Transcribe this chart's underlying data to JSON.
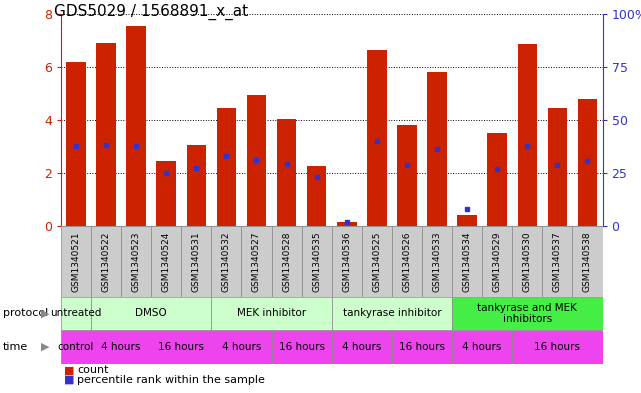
{
  "title": "GDS5029 / 1568891_x_at",
  "samples": [
    "GSM1340521",
    "GSM1340522",
    "GSM1340523",
    "GSM1340524",
    "GSM1340531",
    "GSM1340532",
    "GSM1340527",
    "GSM1340528",
    "GSM1340535",
    "GSM1340536",
    "GSM1340525",
    "GSM1340526",
    "GSM1340533",
    "GSM1340534",
    "GSM1340529",
    "GSM1340530",
    "GSM1340537",
    "GSM1340538"
  ],
  "bar_heights": [
    6.2,
    6.9,
    7.55,
    2.45,
    3.05,
    4.45,
    4.95,
    4.05,
    2.25,
    0.15,
    6.65,
    3.8,
    5.8,
    0.4,
    3.5,
    6.85,
    4.45,
    4.8
  ],
  "blue_markers": [
    3.0,
    3.05,
    3.0,
    2.0,
    2.2,
    2.65,
    2.5,
    2.35,
    1.85,
    0.15,
    3.2,
    2.3,
    2.9,
    0.65,
    2.15,
    3.0,
    2.3,
    2.45
  ],
  "ylim": [
    0,
    8
  ],
  "yticks": [
    0,
    2,
    4,
    6,
    8
  ],
  "y_right_ticks": [
    0,
    25,
    50,
    75,
    100
  ],
  "bar_color": "#cc2200",
  "blue_color": "#3333cc",
  "grid_color": "#000000",
  "sample_bg_color": "#cccccc",
  "sample_border_color": "#888888",
  "protocol_groups": [
    {
      "label": "untreated",
      "start": 0,
      "end": 1,
      "color": "#ccffcc"
    },
    {
      "label": "DMSO",
      "start": 1,
      "end": 5,
      "color": "#ccffcc"
    },
    {
      "label": "MEK inhibitor",
      "start": 5,
      "end": 9,
      "color": "#ccffcc"
    },
    {
      "label": "tankyrase inhibitor",
      "start": 9,
      "end": 13,
      "color": "#ccffcc"
    },
    {
      "label": "tankyrase and MEK\ninhibitors",
      "start": 13,
      "end": 18,
      "color": "#44ee44"
    }
  ],
  "time_groups": [
    {
      "label": "control",
      "start": 0,
      "end": 1
    },
    {
      "label": "4 hours",
      "start": 1,
      "end": 3
    },
    {
      "label": "16 hours",
      "start": 3,
      "end": 5
    },
    {
      "label": "4 hours",
      "start": 5,
      "end": 7
    },
    {
      "label": "16 hours",
      "start": 7,
      "end": 9
    },
    {
      "label": "4 hours",
      "start": 9,
      "end": 11
    },
    {
      "label": "16 hours",
      "start": 11,
      "end": 13
    },
    {
      "label": "4 hours",
      "start": 13,
      "end": 15
    },
    {
      "label": "16 hours",
      "start": 15,
      "end": 18
    }
  ],
  "time_color": "#ee44ee",
  "legend_count_color": "#cc2200",
  "legend_pct_color": "#3333cc",
  "tick_color_left": "#cc2200",
  "tick_color_right": "#3333cc",
  "title_fontsize": 11,
  "label_fontsize": 7.5,
  "tick_fontsize": 9,
  "sample_fontsize": 6.5,
  "legend_fontsize": 8
}
